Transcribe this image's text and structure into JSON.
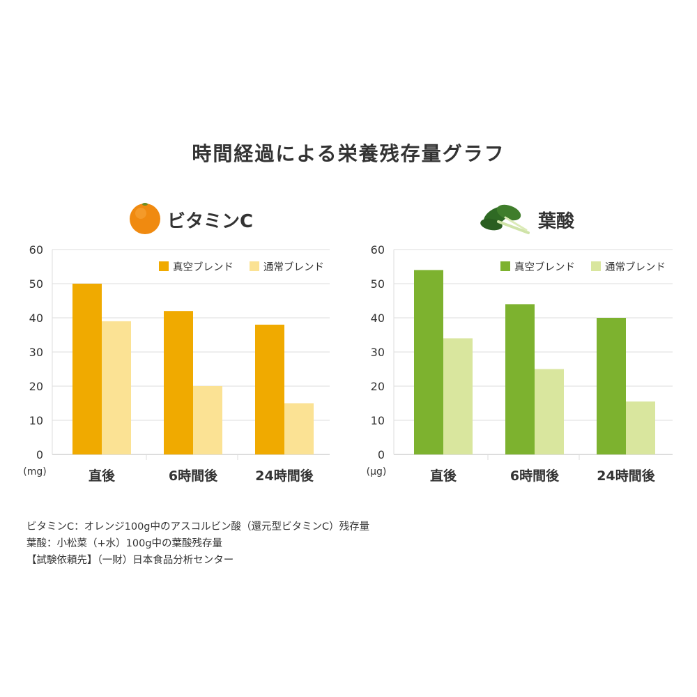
{
  "title": "時間経過による栄養残存量グラフ",
  "colors": {
    "vc_main": "#f0aa00",
    "vc_light": "#fbe294",
    "fa_main": "#7db22f",
    "fa_light": "#d9e69e",
    "grid": "#dddddd",
    "axis": "#bbbbbb"
  },
  "chart_data": [
    {
      "type": "bar",
      "title": "ビタミンC",
      "icon": "orange-icon",
      "ylabel": "(mg)",
      "ylim": [
        0,
        60
      ],
      "yticks": [
        0,
        10,
        20,
        30,
        40,
        50,
        60
      ],
      "categories": [
        "直後",
        "6時間後",
        "24時間後"
      ],
      "legend_position": "top-right",
      "grid": true,
      "series": [
        {
          "name": "真空ブレンド",
          "values": [
            50,
            42,
            38
          ]
        },
        {
          "name": "通常ブレンド",
          "values": [
            39,
            20,
            15
          ]
        }
      ]
    },
    {
      "type": "bar",
      "title": "葉酸",
      "icon": "spinach-icon",
      "ylabel": "(µg)",
      "ylim": [
        0,
        60
      ],
      "yticks": [
        0,
        10,
        20,
        30,
        40,
        50,
        60
      ],
      "categories": [
        "直後",
        "6時間後",
        "24時間後"
      ],
      "legend_position": "top-right",
      "grid": true,
      "series": [
        {
          "name": "真空ブレンド",
          "values": [
            54,
            44,
            40
          ]
        },
        {
          "name": "通常ブレンド",
          "values": [
            34,
            25,
            15.5
          ]
        }
      ]
    }
  ],
  "footnotes": [
    "ビタミンC：オレンジ100g中のアスコルビン酸（還元型ビタミンC）残存量",
    "葉酸：小松菜（+水）100g中の葉酸残存量",
    "【試験依頼先】（一財）日本食品分析センター"
  ]
}
